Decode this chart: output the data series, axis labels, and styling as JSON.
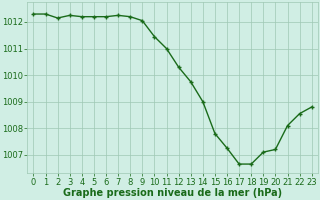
{
  "x": [
    0,
    1,
    2,
    3,
    4,
    5,
    6,
    7,
    8,
    9,
    10,
    11,
    12,
    13,
    14,
    15,
    16,
    17,
    18,
    19,
    20,
    21,
    22,
    23
  ],
  "y": [
    1012.3,
    1012.3,
    1012.15,
    1012.25,
    1012.2,
    1012.2,
    1012.2,
    1012.25,
    1012.2,
    1012.05,
    1011.45,
    1011.0,
    1010.3,
    1009.75,
    1009.0,
    1007.8,
    1007.25,
    1006.65,
    1006.65,
    1007.1,
    1007.2,
    1008.1,
    1008.55,
    1008.8
  ],
  "line_color": "#1a6b1a",
  "marker": "+",
  "marker_color": "#1a6b1a",
  "bg_color": "#d0eee4",
  "grid_color": "#9fc8b4",
  "xlabel": "Graphe pression niveau de la mer (hPa)",
  "xlabel_color": "#1a6b1a",
  "tick_color": "#1a6b1a",
  "ylim": [
    1006.3,
    1012.75
  ],
  "yticks": [
    1007,
    1008,
    1009,
    1010,
    1011,
    1012
  ],
  "xticks": [
    0,
    1,
    2,
    3,
    4,
    5,
    6,
    7,
    8,
    9,
    10,
    11,
    12,
    13,
    14,
    15,
    16,
    17,
    18,
    19,
    20,
    21,
    22,
    23
  ],
  "font_size": 6.0,
  "xlabel_fontsize": 7.0,
  "linewidth": 1.0,
  "markersize": 3.5
}
